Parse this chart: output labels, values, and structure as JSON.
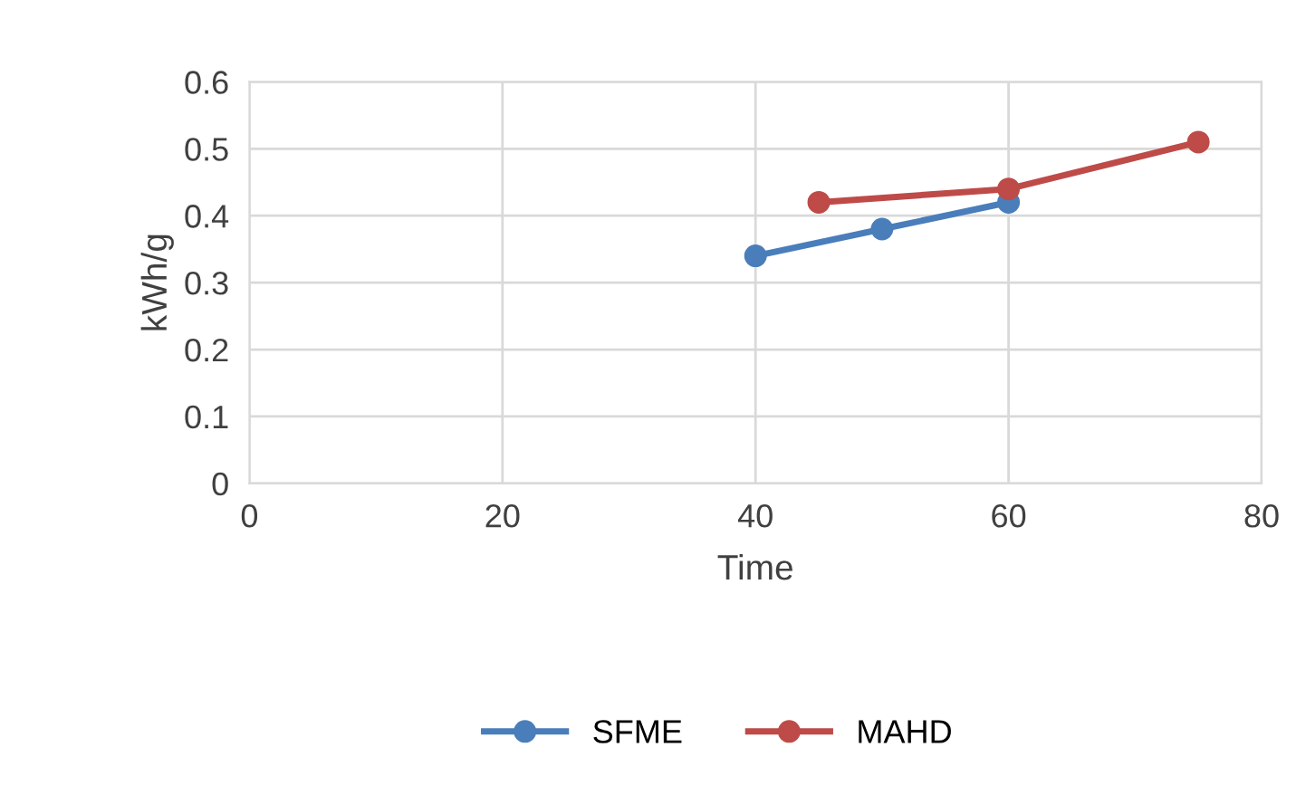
{
  "chart_data": {
    "type": "line",
    "xlabel": "Time",
    "ylabel": "kWh/g",
    "xlim": [
      0,
      80
    ],
    "xticks": [
      0,
      20,
      40,
      60,
      80
    ],
    "ylim": [
      0,
      0.6
    ],
    "yticks": [
      0,
      0.1,
      0.2,
      0.3,
      0.4,
      0.5,
      0.6
    ],
    "grid": true,
    "legend": "bottom",
    "marker": "circle",
    "line_style": "solid",
    "series": [
      {
        "name": "SFME",
        "color": "#4a7ebb",
        "x": [
          40,
          50,
          60
        ],
        "values": [
          0.34,
          0.38,
          0.42
        ]
      },
      {
        "name": "MAHD",
        "color": "#be4b48",
        "x": [
          45,
          60,
          75
        ],
        "values": [
          0.42,
          0.44,
          0.51
        ]
      }
    ]
  }
}
